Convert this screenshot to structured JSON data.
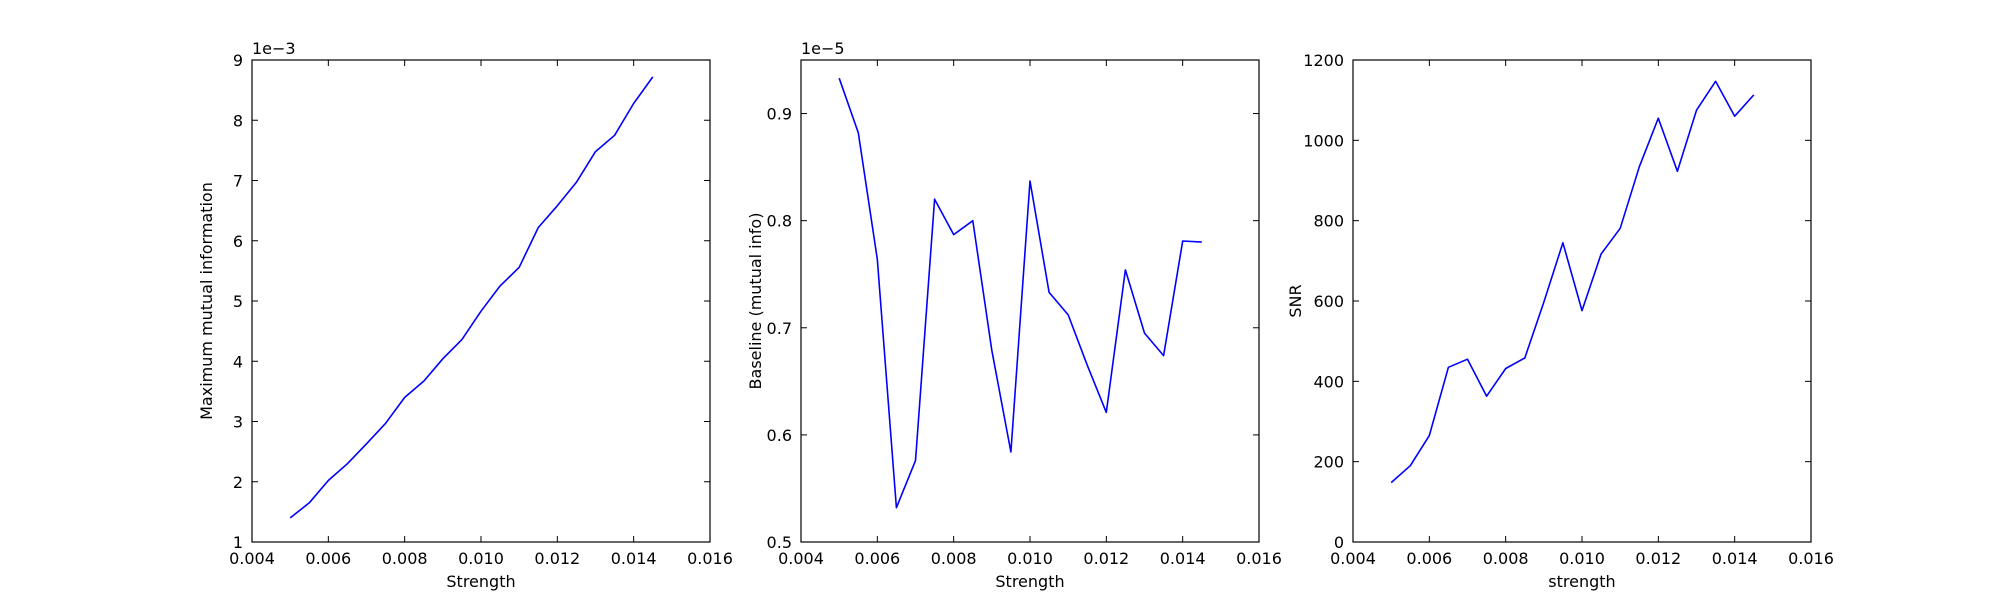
{
  "chart_data": [
    {
      "type": "line",
      "title": "",
      "xlabel": "Strength",
      "ylabel": "Maximum mutual information",
      "offset_label": "1e−3",
      "xlim": [
        0.004,
        0.016
      ],
      "ylim": [
        1,
        9
      ],
      "xticks": [
        0.004,
        0.006,
        0.008,
        0.01,
        0.012,
        0.014,
        0.016
      ],
      "xtick_labels": [
        "0.004",
        "0.006",
        "0.008",
        "0.010",
        "0.012",
        "0.014",
        "0.016"
      ],
      "yticks": [
        1,
        2,
        3,
        4,
        5,
        6,
        7,
        8,
        9
      ],
      "ytick_labels": [
        "1",
        "2",
        "3",
        "4",
        "5",
        "6",
        "7",
        "8",
        "9"
      ],
      "grid": false,
      "color": "#0000ff",
      "series": [
        {
          "x": [
            0.005,
            0.0055,
            0.006,
            0.0065,
            0.007,
            0.0075,
            0.008,
            0.0085,
            0.009,
            0.0095,
            0.01,
            0.0105,
            0.011,
            0.0115,
            0.012,
            0.0125,
            0.013,
            0.0135,
            0.014,
            0.0145
          ],
          "y": [
            1.4,
            1.65,
            2.02,
            2.3,
            2.63,
            2.97,
            3.4,
            3.67,
            4.04,
            4.36,
            4.83,
            5.25,
            5.56,
            6.22,
            6.58,
            6.97,
            7.48,
            7.75,
            8.28,
            8.72
          ]
        }
      ]
    },
    {
      "type": "line",
      "title": "",
      "xlabel": "Strength",
      "ylabel": "Baseline (mutual info)",
      "offset_label": "1e−5",
      "xlim": [
        0.004,
        0.016
      ],
      "ylim": [
        0.5,
        0.95
      ],
      "xticks": [
        0.004,
        0.006,
        0.008,
        0.01,
        0.012,
        0.014,
        0.016
      ],
      "xtick_labels": [
        "0.004",
        "0.006",
        "0.008",
        "0.010",
        "0.012",
        "0.014",
        "0.016"
      ],
      "yticks": [
        0.5,
        0.6,
        0.7,
        0.8,
        0.9
      ],
      "ytick_labels": [
        "0.5",
        "0.6",
        "0.7",
        "0.8",
        "0.9"
      ],
      "grid": false,
      "color": "#0000ff",
      "series": [
        {
          "x": [
            0.005,
            0.0055,
            0.006,
            0.0065,
            0.007,
            0.0075,
            0.008,
            0.0085,
            0.009,
            0.0095,
            0.01,
            0.0105,
            0.011,
            0.0115,
            0.012,
            0.0125,
            0.013,
            0.0135,
            0.014,
            0.0145
          ],
          "y": [
            0.933,
            0.882,
            0.764,
            0.532,
            0.576,
            0.82,
            0.787,
            0.8,
            0.679,
            0.584,
            0.837,
            0.733,
            0.712,
            0.665,
            0.621,
            0.754,
            0.695,
            0.674,
            0.781,
            0.78
          ]
        }
      ]
    },
    {
      "type": "line",
      "title": "",
      "xlabel": "strength",
      "ylabel": "SNR",
      "offset_label": "",
      "xlim": [
        0.004,
        0.016
      ],
      "ylim": [
        0,
        1200
      ],
      "xticks": [
        0.004,
        0.006,
        0.008,
        0.01,
        0.012,
        0.014,
        0.016
      ],
      "xtick_labels": [
        "0.004",
        "0.006",
        "0.008",
        "0.010",
        "0.012",
        "0.014",
        "0.016"
      ],
      "yticks": [
        0,
        200,
        400,
        600,
        800,
        1000,
        1200
      ],
      "ytick_labels": [
        "0",
        "200",
        "400",
        "600",
        "800",
        "1000",
        "1200"
      ],
      "grid": false,
      "color": "#0000ff",
      "series": [
        {
          "x": [
            0.005,
            0.0055,
            0.006,
            0.0065,
            0.007,
            0.0075,
            0.008,
            0.0085,
            0.009,
            0.0095,
            0.01,
            0.0105,
            0.011,
            0.0115,
            0.012,
            0.0125,
            0.013,
            0.0135,
            0.014,
            0.0145
          ],
          "y": [
            148,
            190,
            265,
            435,
            455,
            363,
            432,
            458,
            597,
            745,
            576,
            717,
            781,
            934,
            1055,
            923,
            1075,
            1147,
            1060,
            1113
          ]
        }
      ]
    }
  ]
}
